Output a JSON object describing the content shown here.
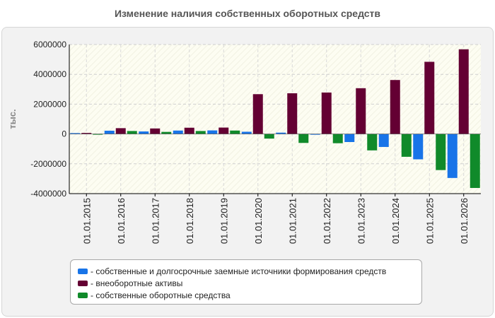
{
  "chart_data": {
    "type": "bar",
    "title": "Изменение наличия собственных оборотных средств",
    "ylabel": "тыс.",
    "xlabel": "",
    "ylim": [
      -4000000,
      6000000
    ],
    "yticks": [
      6000000,
      4000000,
      2000000,
      0,
      -2000000,
      -4000000
    ],
    "ytick_labels": [
      "6000000",
      "4000000",
      "2000000",
      "0",
      "-2000000",
      "-4000000"
    ],
    "grid": true,
    "legend_position": "bottom",
    "categories": [
      "01.01.2015",
      "01.01.2016",
      "01.01.2017",
      "01.01.2018",
      "01.01.2019",
      "01.01.2020",
      "01.01.2021",
      "01.01.2022",
      "01.01.2023",
      "01.01.2024",
      "01.01.2025",
      "01.01.2026"
    ],
    "series": [
      {
        "name": "- собственные и долгосрочные заемные источники формирования средств",
        "color": "#1874e8",
        "values": [
          60000,
          220000,
          170000,
          230000,
          240000,
          150000,
          90000,
          -50000,
          -540000,
          -870000,
          -1700000,
          -2950000
        ]
      },
      {
        "name": "- внеоборотные активы",
        "color": "#640033",
        "values": [
          70000,
          390000,
          370000,
          420000,
          430000,
          2670000,
          2730000,
          2780000,
          3070000,
          3620000,
          4840000,
          5680000
        ]
      },
      {
        "name": "- собственные оборотные средства",
        "color": "#108a2a",
        "values": [
          -10000,
          200000,
          140000,
          200000,
          230000,
          -310000,
          -600000,
          -620000,
          -1100000,
          -1530000,
          -2420000,
          -3620000
        ]
      }
    ]
  }
}
